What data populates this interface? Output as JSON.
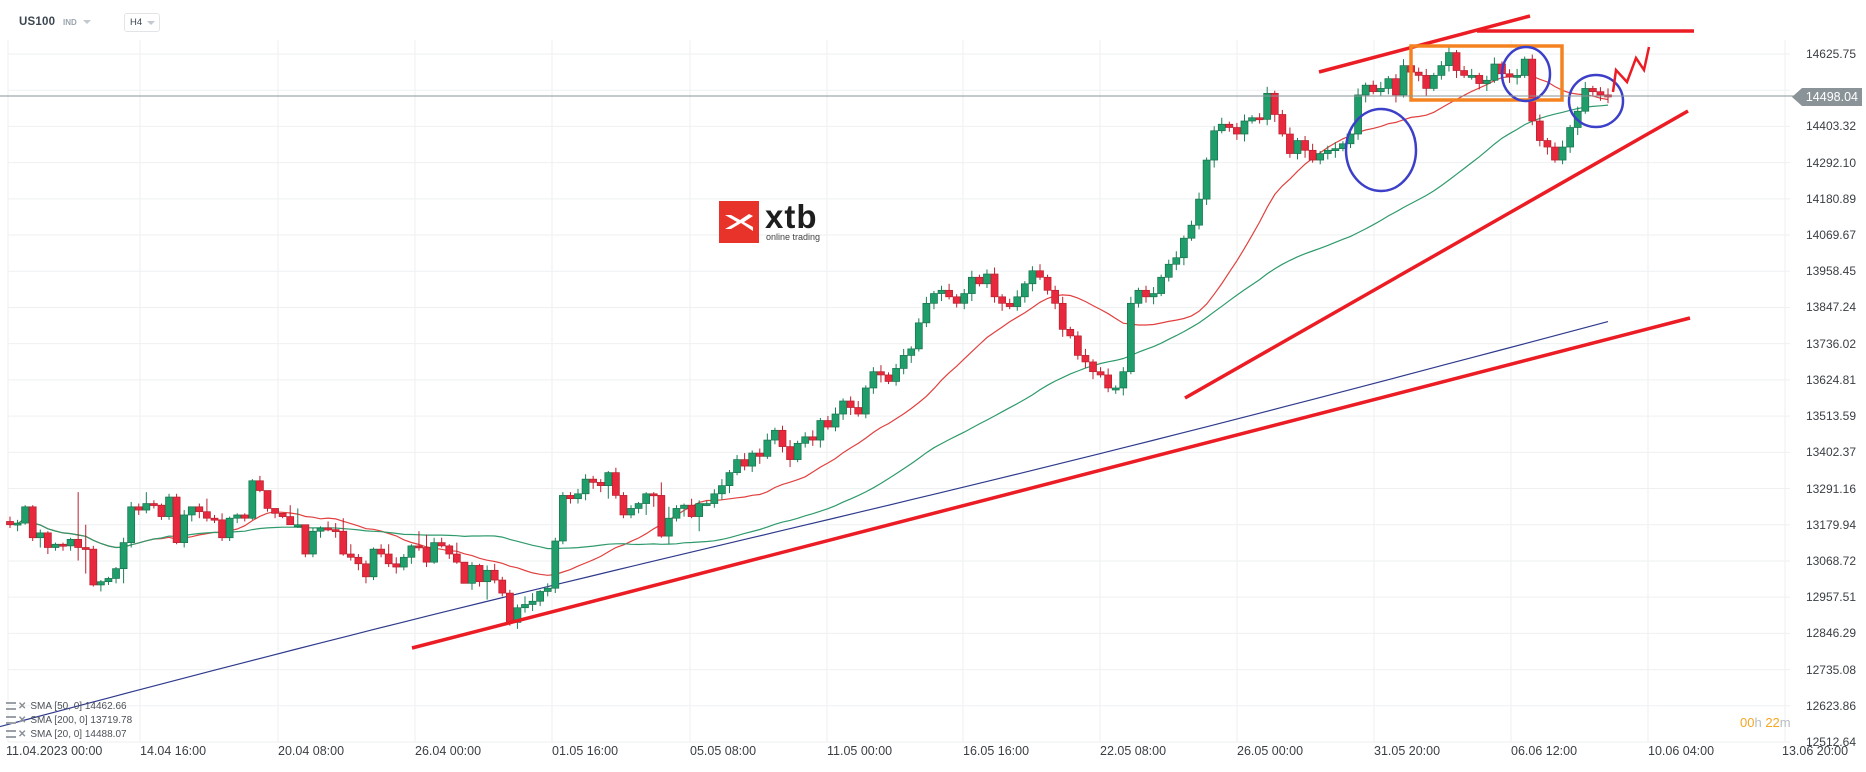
{
  "header": {
    "symbol": "US100",
    "symbol_type": "IND",
    "timeframe": "H4"
  },
  "logo": {
    "text": "xtb",
    "subtitle": "online trading"
  },
  "price_tag": {
    "value": "14498.04",
    "color": "#8a9398"
  },
  "timer": {
    "hours": "00",
    "hours_unit": "h",
    "minutes": "22",
    "minutes_unit": "m"
  },
  "legend": [
    {
      "label": "SMA [50, 0] 14462.66"
    },
    {
      "label": "SMA [200, 0] 13719.78"
    },
    {
      "label": "SMA [20, 0] 14488.07"
    }
  ],
  "colors": {
    "bull": "#1f9e6b",
    "bear": "#e8283c",
    "sma20": "#e0413f",
    "sma50": "#2f9a6c",
    "sma200": "#2e3a8c",
    "trendline": "#ec1c24",
    "box": "#f58220",
    "circle": "#3c3fc8",
    "grid": "#eef0f2"
  },
  "chart_data": {
    "type": "candlestick",
    "title": "US100 IND H4",
    "xlabel": "",
    "ylabel": "",
    "ylim": [
      12512.64,
      14736.97
    ],
    "grid": true,
    "legend_position": "bottom-left",
    "y_ticks": [
      "14625.75",
      "14514.53",
      "14403.32",
      "14292.10",
      "14180.89",
      "14069.67",
      "13958.45",
      "13847.24",
      "13736.02",
      "13624.81",
      "13513.59",
      "13402.37",
      "13291.16",
      "13179.94",
      "13068.72",
      "12957.51",
      "12846.29",
      "12735.08",
      "12623.86",
      "12512.64"
    ],
    "x_ticks": [
      "11.04.2023  00:00",
      "14.04 16:00",
      "20.04 08:00",
      "26.04 00:00",
      "01.05 16:00",
      "05.05 08:00",
      "11.05 00:00",
      "16.05 16:00",
      "22.05 08:00",
      "26.05 00:00",
      "31.05 20:00",
      "06.06 12:00",
      "10.06 04:00",
      "13.06 20:00"
    ],
    "last_price": 14498.04,
    "indicators": [
      {
        "name": "SMA [50, 0]",
        "last": 14462.66
      },
      {
        "name": "SMA [200, 0]",
        "last": 13719.78
      },
      {
        "name": "SMA [20, 0]",
        "last": 14488.07
      }
    ],
    "candles_ohlc_approx": [
      [
        13190,
        13205,
        13170,
        13180
      ],
      [
        13180,
        13195,
        13160,
        13185
      ],
      [
        13185,
        13240,
        13180,
        13235
      ],
      [
        13235,
        13240,
        13130,
        13140
      ],
      [
        13140,
        13165,
        13110,
        13155
      ],
      [
        13155,
        13160,
        13090,
        13110
      ],
      [
        13110,
        13125,
        13100,
        13120
      ],
      [
        13120,
        13125,
        13100,
        13115
      ],
      [
        13115,
        13140,
        13100,
        13135
      ],
      [
        13135,
        13280,
        13070,
        13110
      ],
      [
        13110,
        13180,
        13030,
        13105
      ],
      [
        13105,
        13115,
        12990,
        12995
      ],
      [
        12995,
        13010,
        12975,
        13005
      ],
      [
        13005,
        13020,
        12995,
        13015
      ],
      [
        13015,
        13050,
        13000,
        13045
      ],
      [
        13045,
        13140,
        13000,
        13125
      ],
      [
        13125,
        13250,
        13110,
        13235
      ],
      [
        13235,
        13245,
        13210,
        13225
      ],
      [
        13225,
        13280,
        13215,
        13245
      ],
      [
        13245,
        13255,
        13230,
        13240
      ],
      [
        13240,
        13245,
        13195,
        13205
      ],
      [
        13205,
        13275,
        13195,
        13265
      ],
      [
        13265,
        13275,
        13120,
        13125
      ],
      [
        13125,
        13225,
        13110,
        13210
      ],
      [
        13210,
        13235,
        13190,
        13235
      ],
      [
        13235,
        13245,
        13200,
        13220
      ],
      [
        13220,
        13260,
        13190,
        13200
      ],
      [
        13200,
        13210,
        13185,
        13195
      ],
      [
        13195,
        13215,
        13130,
        13140
      ],
      [
        13140,
        13205,
        13130,
        13200
      ],
      [
        13200,
        13215,
        13185,
        13210
      ],
      [
        13210,
        13215,
        13190,
        13200
      ],
      [
        13200,
        13320,
        13195,
        13315
      ],
      [
        13315,
        13330,
        13280,
        13285
      ],
      [
        13285,
        13280,
        13220,
        13230
      ],
      [
        13230,
        13225,
        13200,
        13215
      ],
      [
        13215,
        13215,
        13200,
        13205
      ],
      [
        13205,
        13240,
        13190,
        13180
      ],
      [
        13180,
        13230,
        13170,
        13180
      ],
      [
        13180,
        13180,
        13080,
        13090
      ],
      [
        13090,
        13170,
        13080,
        13160
      ],
      [
        13160,
        13175,
        13140,
        13170
      ],
      [
        13170,
        13190,
        13160,
        13165
      ],
      [
        13165,
        13185,
        13140,
        13160
      ],
      [
        13160,
        13200,
        13085,
        13090
      ],
      [
        13090,
        13120,
        13070,
        13080
      ],
      [
        13080,
        13090,
        13040,
        13060
      ],
      [
        13060,
        13070,
        13000,
        13020
      ],
      [
        13020,
        13110,
        13010,
        13105
      ],
      [
        13105,
        13120,
        13080,
        13090
      ],
      [
        13090,
        13120,
        13050,
        13060
      ],
      [
        13060,
        13080,
        13030,
        13050
      ],
      [
        13050,
        13090,
        13040,
        13080
      ],
      [
        13080,
        13120,
        13060,
        13115
      ],
      [
        13115,
        13160,
        13100,
        13110
      ],
      [
        13110,
        13150,
        13050,
        13065
      ],
      [
        13065,
        13140,
        13060,
        13125
      ],
      [
        13125,
        13140,
        13110,
        13115
      ],
      [
        13115,
        13120,
        13075,
        13090
      ],
      [
        13090,
        13125,
        13060,
        13065
      ],
      [
        13065,
        13065,
        13000,
        13000
      ],
      [
        13000,
        13065,
        12980,
        13055
      ],
      [
        13055,
        13060,
        12990,
        13005
      ],
      [
        13005,
        13055,
        12950,
        13040
      ],
      [
        13040,
        13060,
        13000,
        13010
      ],
      [
        13010,
        13020,
        12960,
        12970
      ],
      [
        12970,
        12980,
        12870,
        12880
      ],
      [
        12880,
        12935,
        12860,
        12925
      ],
      [
        12925,
        12960,
        12910,
        12935
      ],
      [
        12935,
        12970,
        12915,
        12945
      ],
      [
        12945,
        12980,
        12930,
        12975
      ],
      [
        12975,
        13000,
        12960,
        12985
      ],
      [
        12985,
        13140,
        12970,
        13130
      ],
      [
        13130,
        13280,
        13120,
        13270
      ],
      [
        13270,
        13280,
        13245,
        13260
      ],
      [
        13260,
        13290,
        13245,
        13275
      ],
      [
        13275,
        13335,
        13255,
        13320
      ],
      [
        13320,
        13330,
        13290,
        13310
      ],
      [
        13310,
        13320,
        13280,
        13300
      ],
      [
        13300,
        13345,
        13260,
        13340
      ],
      [
        13340,
        13355,
        13260,
        13270
      ],
      [
        13270,
        13280,
        13200,
        13210
      ],
      [
        13210,
        13240,
        13200,
        13230
      ],
      [
        13230,
        13250,
        13215,
        13245
      ],
      [
        13245,
        13280,
        13210,
        13275
      ],
      [
        13275,
        13280,
        13235,
        13270
      ],
      [
        13270,
        13310,
        13140,
        13145
      ],
      [
        13145,
        13235,
        13120,
        13200
      ],
      [
        13200,
        13240,
        13190,
        13230
      ],
      [
        13230,
        13245,
        13205,
        13240
      ],
      [
        13240,
        13260,
        13200,
        13205
      ],
      [
        13205,
        13255,
        13160,
        13245
      ]
    ],
    "annotations": [
      {
        "type": "trendline",
        "label": "lower support trendline",
        "from": [
          "26.04",
          12812
        ],
        "to": [
          "~13.06",
          13820
        ]
      },
      {
        "type": "trendline",
        "label": "upper support trendline",
        "from": [
          "~24.05",
          13592
        ],
        "to": [
          "~13.06",
          14444
        ]
      },
      {
        "type": "trendline",
        "label": "rising resistance",
        "from": [
          "~30.05",
          14570
        ],
        "to": [
          "~04.06",
          14690
        ]
      },
      {
        "type": "horizontal_line",
        "label": "resistance",
        "value": 14665
      },
      {
        "type": "rectangle",
        "label": "consolidation zone",
        "top": 14622,
        "bottom": 14494
      },
      {
        "type": "ellipse",
        "count": 3
      },
      {
        "type": "zigzag_arrow",
        "label": "projected upward path"
      }
    ]
  }
}
